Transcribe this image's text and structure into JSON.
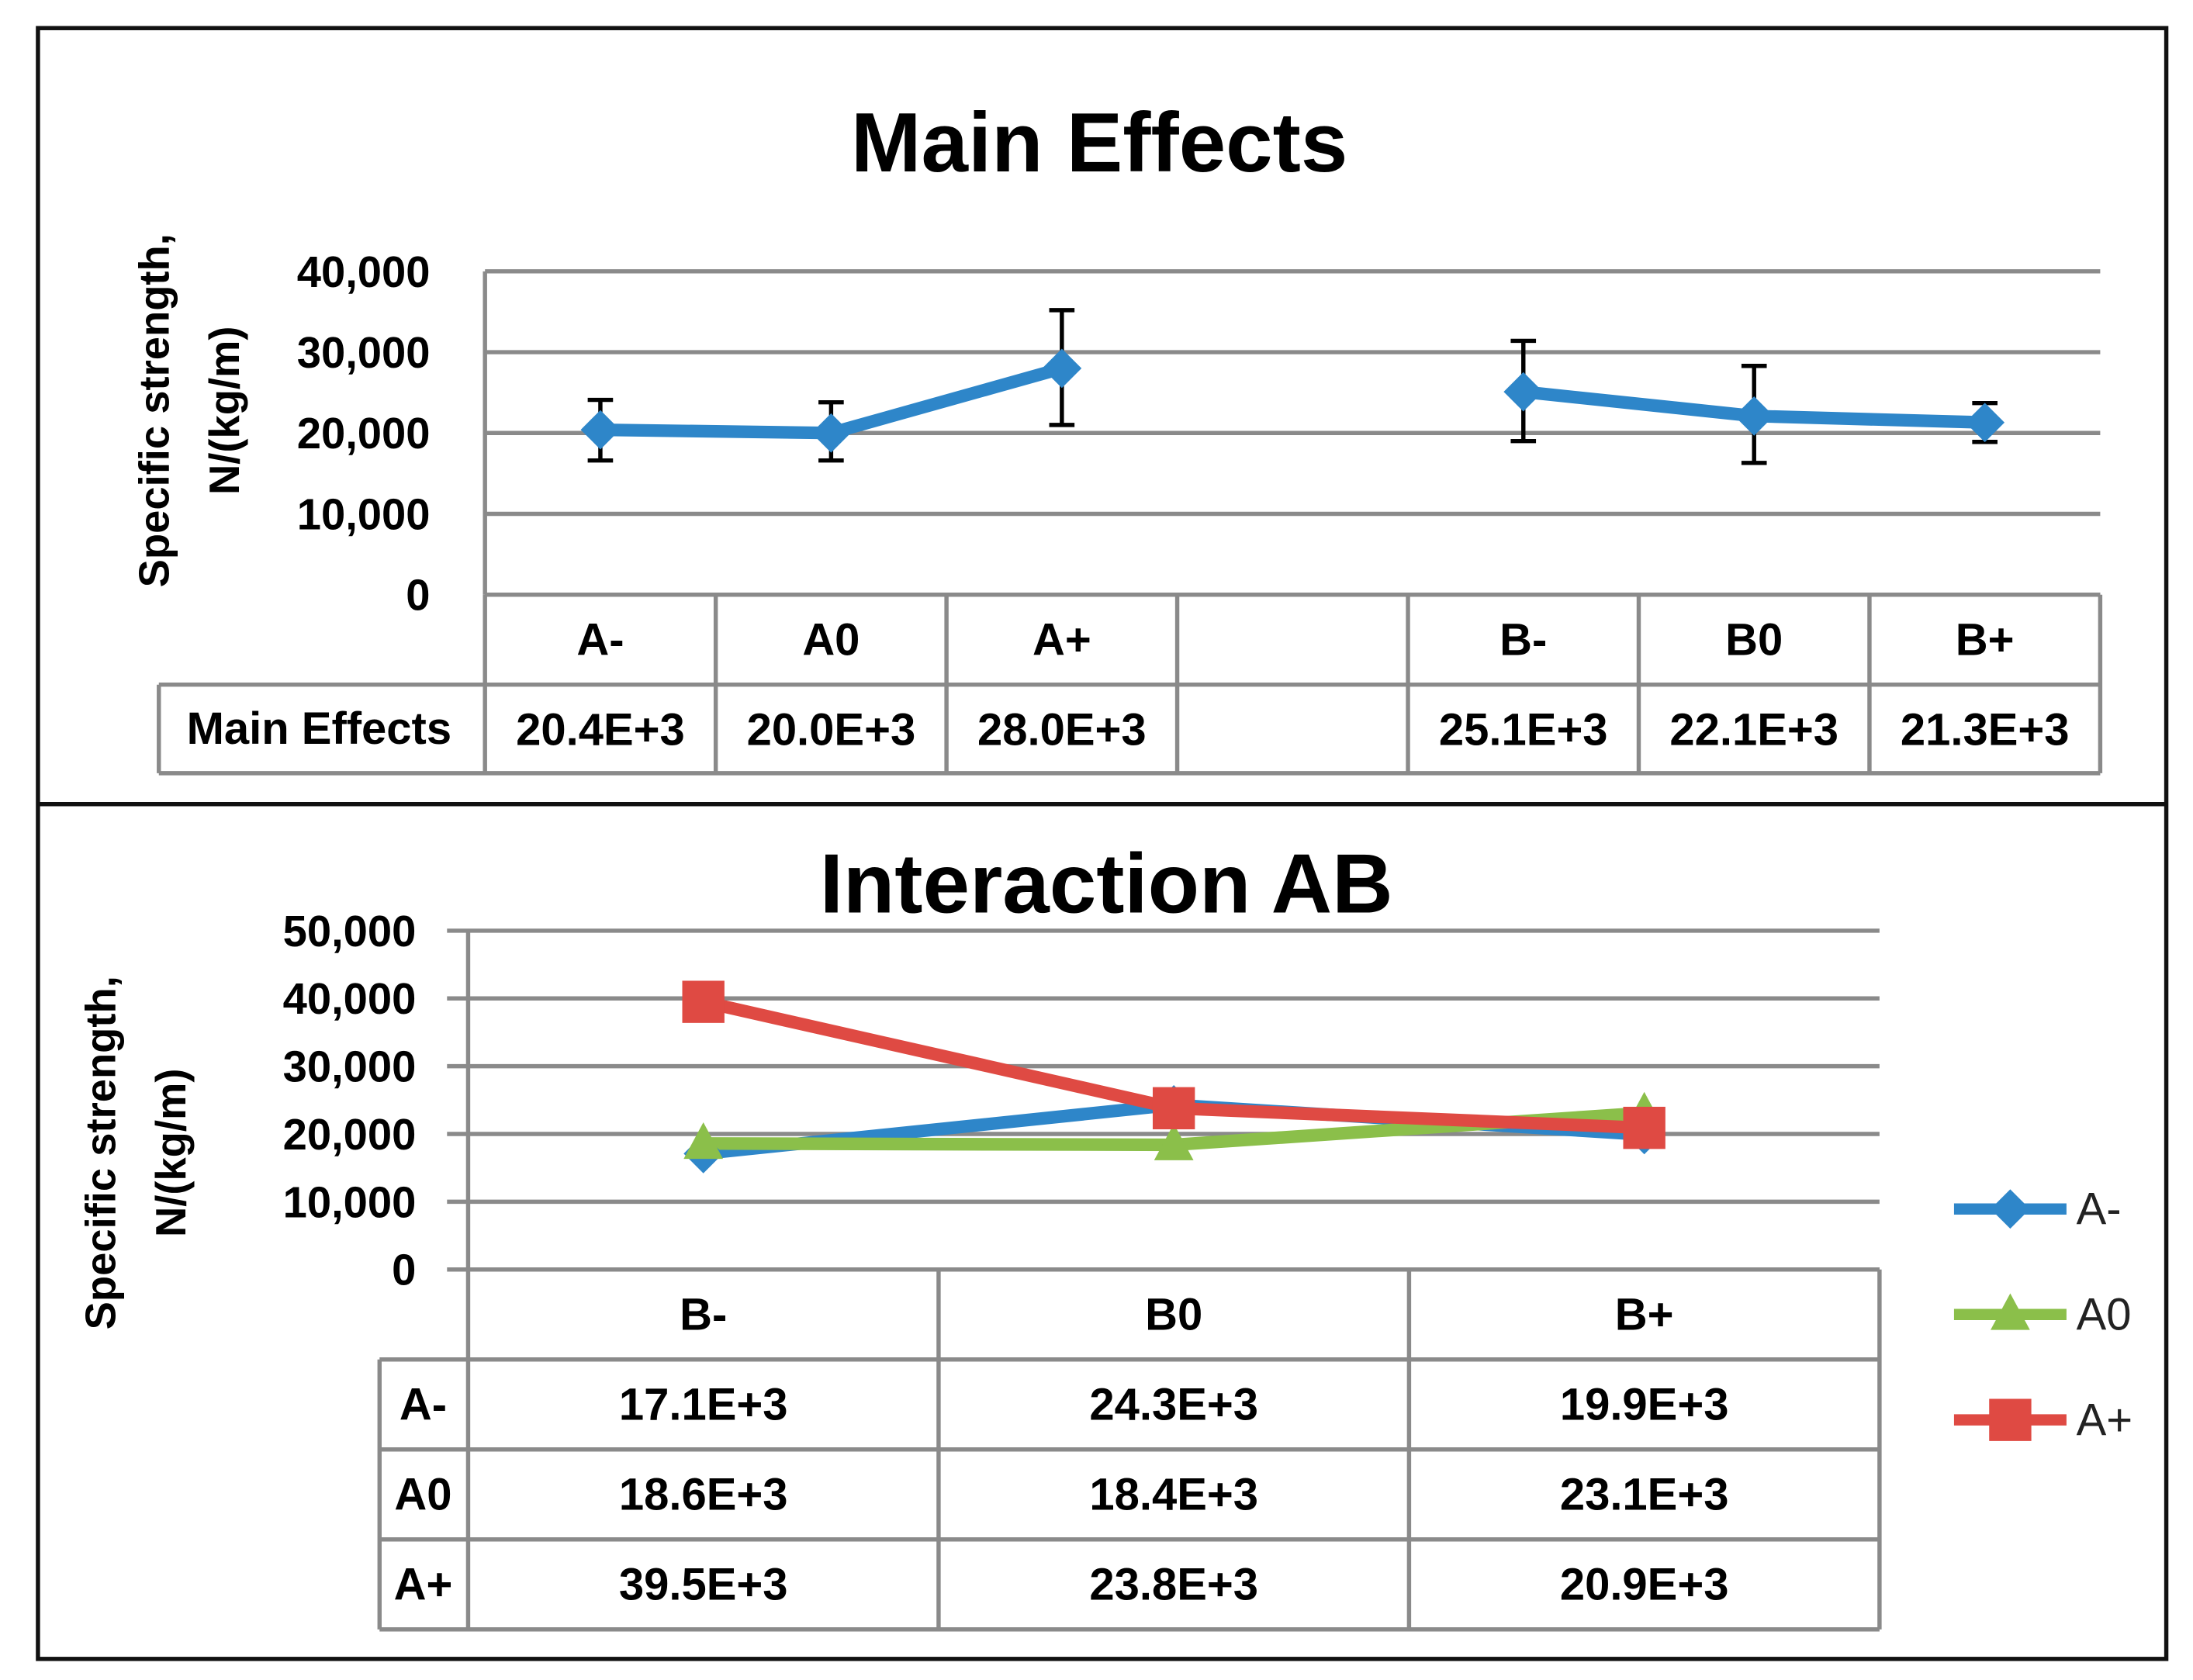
{
  "chart_data": [
    {
      "type": "line",
      "title": "Main Effects",
      "ylabel_line1": "Specific strength,",
      "ylabel_line2": "N/(kg/m)",
      "ylim": [
        0,
        40000
      ],
      "yticks": [
        0,
        10000,
        20000,
        30000,
        40000
      ],
      "ytick_labels": [
        "0",
        "10,000",
        "20,000",
        "30,000",
        "40,000"
      ],
      "categories": [
        "A-",
        "A0",
        "A+",
        "",
        "B-",
        "B0",
        "B+"
      ],
      "series": [
        {
          "name": "Main Effects",
          "color": "#2e86c9",
          "marker": "diamond",
          "segments": [
            {
              "indices": [
                0,
                1,
                2
              ],
              "values": [
                20400,
                20000,
                28000
              ],
              "err_low": [
                16600,
                16600,
                21000
              ],
              "err_high": [
                24100,
                23800,
                35200
              ]
            },
            {
              "indices": [
                4,
                5,
                6
              ],
              "values": [
                25100,
                22100,
                21300
              ],
              "err_low": [
                19000,
                16300,
                18900
              ],
              "err_high": [
                31400,
                28300,
                23700
              ]
            }
          ]
        }
      ],
      "table": {
        "row_label": "Main Effects",
        "cells": [
          "20.4E+3",
          "20.0E+3",
          "28.0E+3",
          "",
          "25.1E+3",
          "22.1E+3",
          "21.3E+3"
        ]
      }
    },
    {
      "type": "line",
      "title": "Interaction AB",
      "ylabel_line1": "Specific strength,",
      "ylabel_line2": "N/(kg/m)",
      "ylim": [
        0,
        50000
      ],
      "yticks": [
        0,
        10000,
        20000,
        30000,
        40000,
        50000
      ],
      "ytick_labels": [
        "0",
        "10,000",
        "20,000",
        "30,000",
        "40,000",
        "50,000"
      ],
      "categories": [
        "B-",
        "B0",
        "B+"
      ],
      "series": [
        {
          "name": "A-",
          "color": "#2e86c9",
          "marker": "diamond",
          "values": [
            17100,
            24300,
            19900
          ],
          "labels": [
            "17.1E+3",
            "24.3E+3",
            "19.9E+3"
          ]
        },
        {
          "name": "A0",
          "color": "#8bbf4a",
          "marker": "triangle",
          "values": [
            18600,
            18400,
            23100
          ],
          "labels": [
            "18.6E+3",
            "18.4E+3",
            "23.1E+3"
          ]
        },
        {
          "name": "A+",
          "color": "#df4a43",
          "marker": "square",
          "values": [
            39500,
            23800,
            20900
          ],
          "labels": [
            "39.5E+3",
            "23.8E+3",
            "20.9E+3"
          ]
        }
      ],
      "legend_position": "right"
    }
  ]
}
